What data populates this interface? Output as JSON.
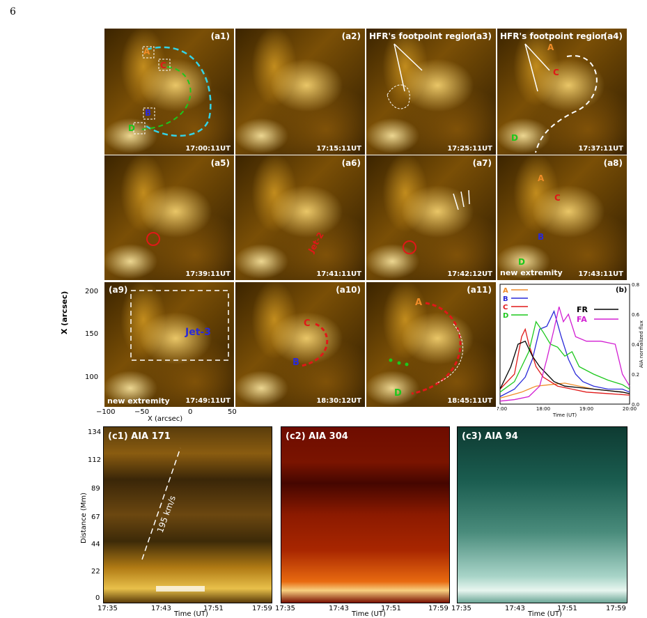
{
  "page_number": "6",
  "panels": [
    {
      "id": "a1",
      "label": "(a1)",
      "time": "17:00:11UT"
    },
    {
      "id": "a2",
      "label": "(a2)",
      "time": "17:15:11UT"
    },
    {
      "id": "a3",
      "label": "(a3)",
      "time": "17:25:11UT"
    },
    {
      "id": "a4",
      "label": "(a4)",
      "time": "17:37:11UT"
    },
    {
      "id": "a5",
      "label": "(a5)",
      "time": "17:39:11UT"
    },
    {
      "id": "a6",
      "label": "(a6)",
      "time": "17:41:11UT"
    },
    {
      "id": "a7",
      "label": "(a7)",
      "time": "17:42:12UT"
    },
    {
      "id": "a8",
      "label": "(a8)",
      "time": "17:43:11UT"
    },
    {
      "id": "a9",
      "label": "(a9)",
      "time": "17:49:11UT"
    },
    {
      "id": "a10",
      "label": "(a10)",
      "time": "18:30:12UT"
    },
    {
      "id": "a11",
      "label": "(a11)",
      "time": "18:45:11UT"
    }
  ],
  "annotations": {
    "footpoint_region": "HFR's footpoint region",
    "jet2": "Jet-2",
    "jet3": "Jet-3",
    "new_extremity": "new extremity",
    "A": "A",
    "B": "B",
    "C": "C",
    "D": "D"
  },
  "a9_axes": {
    "ylabel": "X (arcsec)",
    "xlabel": "X (arcsec)",
    "yticks": [
      "200",
      "150",
      "100"
    ],
    "xticks": [
      "−100",
      "−50",
      "0",
      "50"
    ]
  },
  "colors": {
    "A": "#f08c28",
    "B": "#2a2ad8",
    "C": "#e01818",
    "D": "#1cc81c",
    "FR": "#000000",
    "FA": "#d21ed2",
    "cyan": "#35d3e6"
  },
  "chart_data": {
    "type": "line",
    "panel_label": "(b)",
    "xlabel": "Time (UT)",
    "ylabel": "AIA normalized flux",
    "xticks": [
      "17:00",
      "18:00",
      "19:00",
      "20:00"
    ],
    "yticks": [
      "0.0",
      "0.2",
      "0.4",
      "0.6",
      "0.8"
    ],
    "ylim": [
      0,
      0.8
    ],
    "xlim": [
      0,
      180
    ],
    "legend": [
      "A",
      "B",
      "C",
      "D",
      "FR",
      "FA"
    ],
    "series": [
      {
        "name": "A",
        "x": [
          0,
          15,
          30,
          40,
          50,
          70,
          90,
          110,
          130,
          150,
          170,
          180
        ],
        "y": [
          0.04,
          0.06,
          0.08,
          0.1,
          0.12,
          0.13,
          0.14,
          0.12,
          0.1,
          0.09,
          0.08,
          0.07
        ]
      },
      {
        "name": "B",
        "x": [
          0,
          20,
          35,
          45,
          55,
          65,
          75,
          85,
          95,
          105,
          115,
          130,
          150,
          170,
          180
        ],
        "y": [
          0.05,
          0.1,
          0.18,
          0.3,
          0.5,
          0.52,
          0.62,
          0.45,
          0.3,
          0.2,
          0.15,
          0.12,
          0.1,
          0.1,
          0.08
        ]
      },
      {
        "name": "C",
        "x": [
          0,
          20,
          30,
          35,
          40,
          50,
          60,
          80,
          100,
          120,
          150,
          180
        ],
        "y": [
          0.1,
          0.2,
          0.45,
          0.5,
          0.4,
          0.25,
          0.18,
          0.12,
          0.1,
          0.08,
          0.07,
          0.06
        ]
      },
      {
        "name": "D",
        "x": [
          0,
          20,
          30,
          40,
          50,
          60,
          70,
          80,
          90,
          100,
          110,
          130,
          150,
          170,
          180
        ],
        "y": [
          0.08,
          0.15,
          0.25,
          0.35,
          0.55,
          0.48,
          0.4,
          0.38,
          0.32,
          0.35,
          0.25,
          0.2,
          0.16,
          0.13,
          0.1
        ]
      },
      {
        "name": "FR",
        "x": [
          0,
          15,
          25,
          35,
          45,
          55,
          65,
          75,
          90,
          110,
          130,
          150,
          170,
          180
        ],
        "y": [
          0.1,
          0.25,
          0.4,
          0.42,
          0.32,
          0.25,
          0.2,
          0.15,
          0.12,
          0.11,
          0.1,
          0.09,
          0.08,
          0.07
        ]
      },
      {
        "name": "FA",
        "x": [
          0,
          20,
          40,
          55,
          65,
          75,
          82,
          88,
          95,
          105,
          120,
          140,
          160,
          170,
          180
        ],
        "y": [
          0.02,
          0.03,
          0.05,
          0.12,
          0.3,
          0.5,
          0.65,
          0.55,
          0.6,
          0.45,
          0.42,
          0.42,
          0.4,
          0.2,
          0.12
        ]
      }
    ]
  },
  "stack_plots": [
    {
      "id": "c1",
      "label": "(c1) AIA 171",
      "speed": "195 km/s"
    },
    {
      "id": "c2",
      "label": "(c2) AIA 304"
    },
    {
      "id": "c3",
      "label": "(c3) AIA 94"
    }
  ],
  "stack_axes": {
    "ylabel": "Distance (Mm)",
    "xlabel": "Time (UT)",
    "yticks": [
      "134",
      "112",
      "89",
      "67",
      "44",
      "22",
      "0"
    ],
    "xticks": [
      "17:35",
      "17:43",
      "17:51",
      "17:59"
    ]
  }
}
